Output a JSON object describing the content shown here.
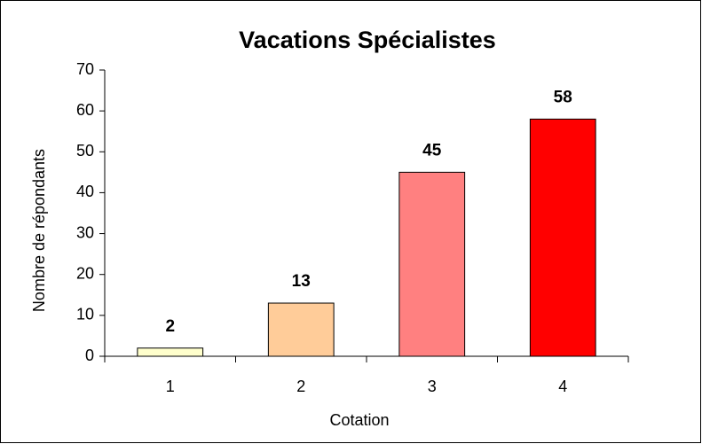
{
  "chart_data": {
    "type": "bar",
    "title": "Vacations Spécialistes",
    "xlabel": "Cotation",
    "ylabel": "Nombre de répondants",
    "categories": [
      "1",
      "2",
      "3",
      "4"
    ],
    "values": [
      2,
      13,
      45,
      58
    ],
    "colors": [
      "#ffffcc",
      "#ffcc99",
      "#ff8080",
      "#ff0000"
    ],
    "ylim": [
      0,
      70
    ],
    "yticks": [
      0,
      10,
      20,
      30,
      40,
      50,
      60,
      70
    ],
    "grid": false
  }
}
